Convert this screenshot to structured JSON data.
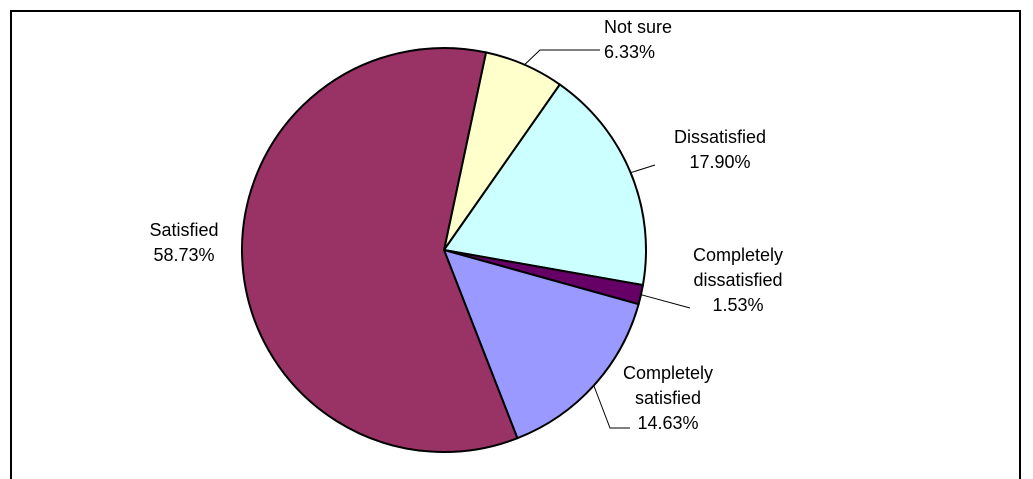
{
  "chart_data": {
    "type": "pie",
    "title": "",
    "slices": [
      {
        "label": [
          "Not sure"
        ],
        "value": 6.33,
        "value_label": "6.33%",
        "color": "#FFFFCC"
      },
      {
        "label": [
          "Dissatisfied"
        ],
        "value": 17.9,
        "value_label": "17.90%",
        "color": "#CCFFFF"
      },
      {
        "label": [
          "Completely",
          "dissatisfied"
        ],
        "value": 1.53,
        "value_label": "1.53%",
        "color": "#660066"
      },
      {
        "label": [
          "Completely",
          "satisfied"
        ],
        "value": 14.63,
        "value_label": "14.63%",
        "color": "#9999FF"
      },
      {
        "label": [
          "Satisfied"
        ],
        "value": 58.73,
        "value_label": "58.73%",
        "color": "#993366"
      }
    ],
    "legend": "none"
  }
}
